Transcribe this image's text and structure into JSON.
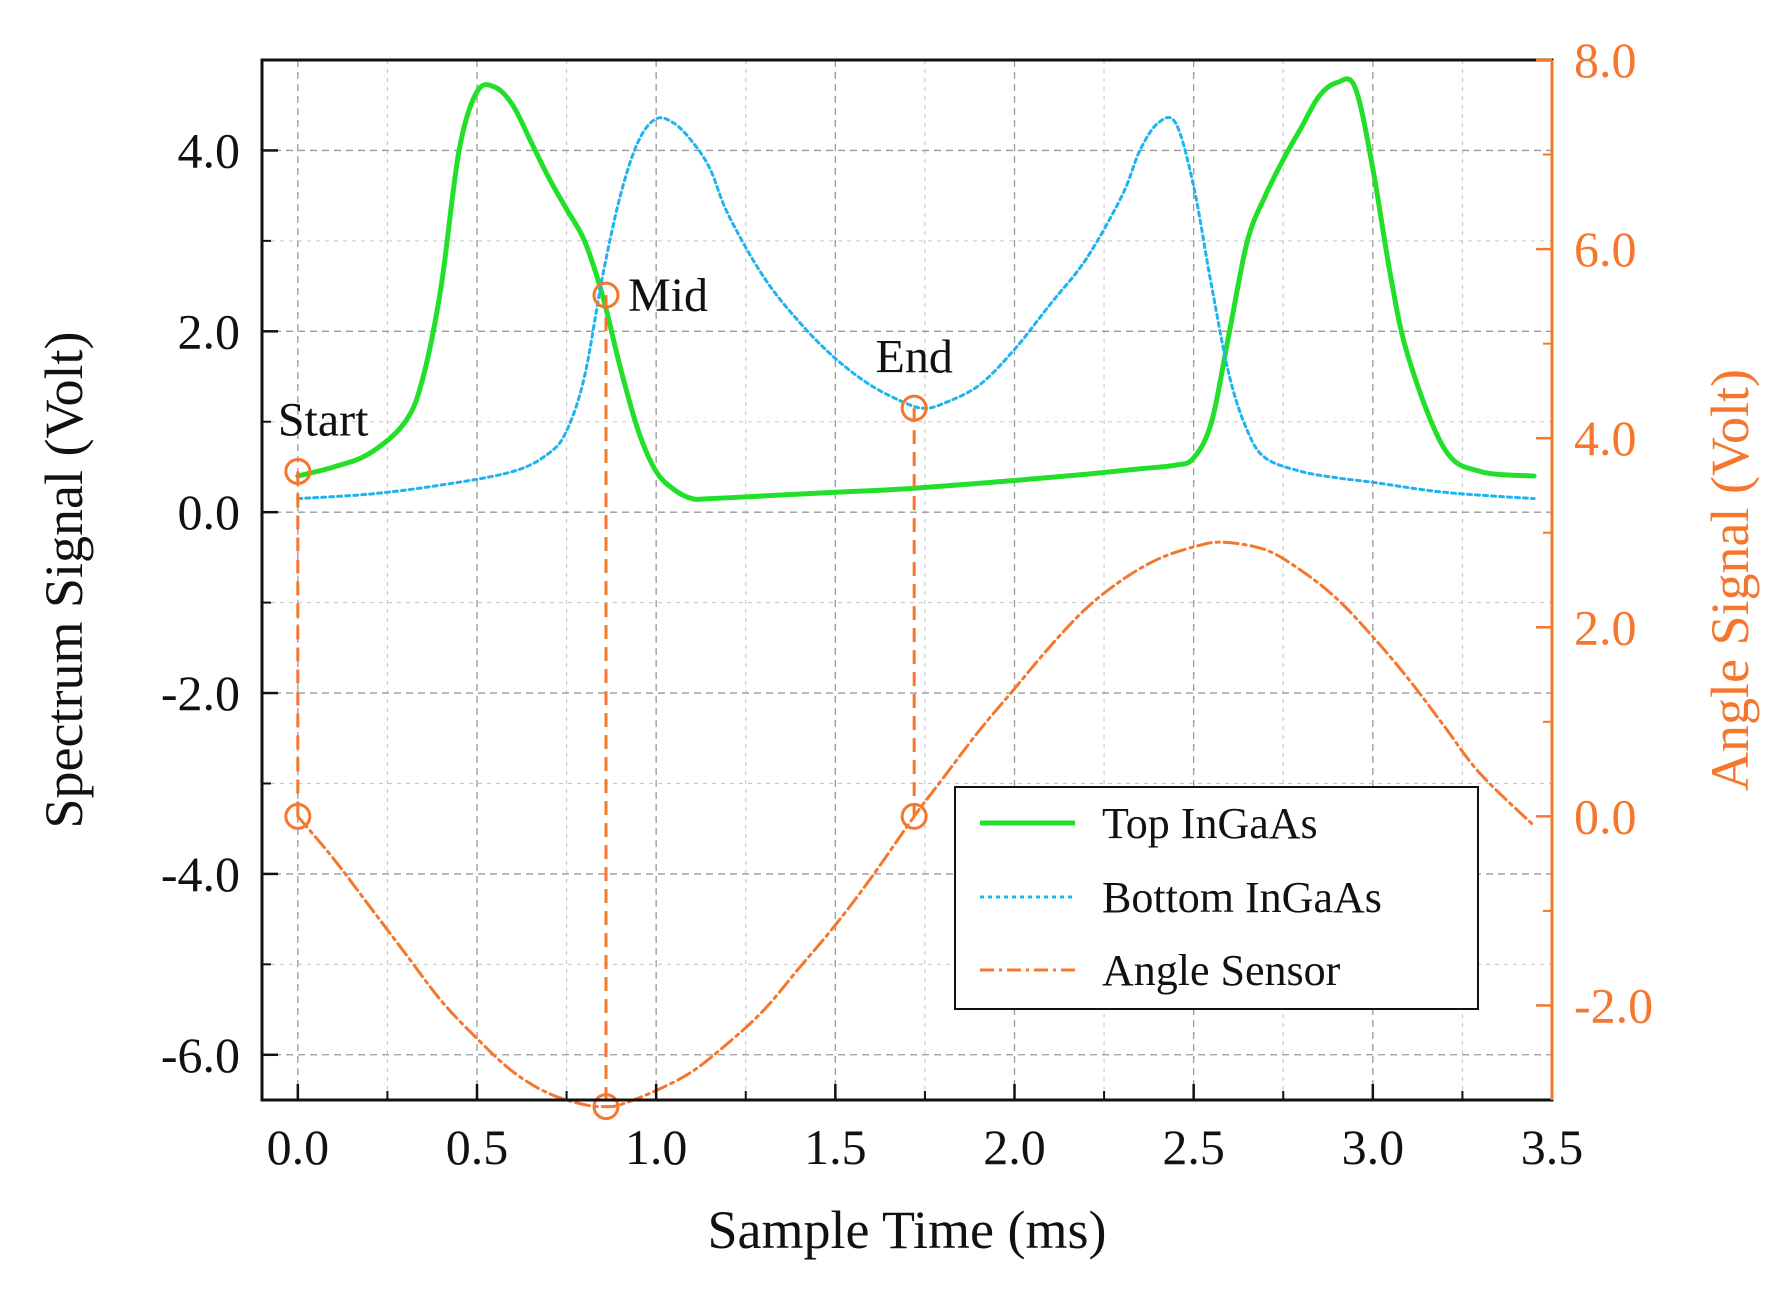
{
  "chart_data": {
    "type": "line",
    "xlabel": "Sample Time (ms)",
    "ylabel_left": "Spectrum Signal (Volt)",
    "ylabel_right": "Angle Signal (Volt)",
    "xlim": [
      -0.1,
      3.5
    ],
    "ylim_left": [
      -6.5,
      5.0
    ],
    "ylim_right": [
      -3.0,
      8.0
    ],
    "x_ticks": [
      "0.0",
      "0.5",
      "1.0",
      "1.5",
      "2.0",
      "2.5",
      "3.0",
      "3.5"
    ],
    "y_ticks_left": [
      "-6.0",
      "-4.0",
      "-2.0",
      "0.0",
      "2.0",
      "4.0"
    ],
    "y_ticks_right": [
      "-2.0",
      "0.0",
      "2.0",
      "4.0",
      "6.0",
      "8.0"
    ],
    "grid": true,
    "legend_position": "bottom-right",
    "colors": {
      "top": "#22e02a",
      "bottom": "#1fb4ee",
      "angle": "#f5772d",
      "axis_right": "#f5772d",
      "axis_left": "#111111"
    },
    "series": [
      {
        "name": "Top InGaAs",
        "axis": "left",
        "style": "solid",
        "x": [
          0.0,
          0.1,
          0.2,
          0.3,
          0.35,
          0.4,
          0.45,
          0.5,
          0.55,
          0.6,
          0.65,
          0.7,
          0.75,
          0.8,
          0.85,
          0.9,
          0.95,
          1.0,
          1.05,
          1.1,
          1.15,
          1.3,
          1.5,
          1.7,
          2.0,
          2.2,
          2.35,
          2.45,
          2.5,
          2.55,
          2.6,
          2.65,
          2.7,
          2.75,
          2.8,
          2.85,
          2.9,
          2.95,
          3.0,
          3.05,
          3.1,
          3.2,
          3.3,
          3.45
        ],
        "y": [
          0.4,
          0.5,
          0.65,
          1.0,
          1.5,
          2.5,
          4.0,
          4.65,
          4.7,
          4.5,
          4.1,
          3.7,
          3.35,
          3.0,
          2.4,
          1.6,
          0.9,
          0.45,
          0.25,
          0.15,
          0.15,
          0.18,
          0.22,
          0.26,
          0.35,
          0.42,
          0.48,
          0.52,
          0.6,
          1.0,
          2.0,
          3.0,
          3.5,
          3.9,
          4.25,
          4.6,
          4.75,
          4.7,
          3.8,
          2.6,
          1.7,
          0.7,
          0.45,
          0.4
        ]
      },
      {
        "name": "Bottom InGaAs",
        "axis": "left",
        "style": "dotted",
        "x": [
          0.0,
          0.2,
          0.4,
          0.6,
          0.7,
          0.75,
          0.8,
          0.85,
          0.9,
          0.95,
          1.0,
          1.05,
          1.1,
          1.15,
          1.2,
          1.3,
          1.4,
          1.5,
          1.6,
          1.7,
          1.75,
          1.8,
          1.9,
          2.0,
          2.1,
          2.2,
          2.3,
          2.35,
          2.4,
          2.45,
          2.5,
          2.55,
          2.6,
          2.65,
          2.7,
          2.8,
          2.9,
          3.0,
          3.2,
          3.45
        ],
        "y": [
          0.15,
          0.2,
          0.3,
          0.45,
          0.65,
          0.9,
          1.5,
          2.6,
          3.5,
          4.1,
          4.35,
          4.3,
          4.1,
          3.8,
          3.3,
          2.6,
          2.1,
          1.7,
          1.4,
          1.2,
          1.15,
          1.2,
          1.4,
          1.8,
          2.3,
          2.8,
          3.5,
          4.0,
          4.3,
          4.3,
          3.6,
          2.5,
          1.5,
          0.9,
          0.6,
          0.45,
          0.38,
          0.33,
          0.22,
          0.15
        ]
      },
      {
        "name": "Angle Sensor",
        "axis": "right",
        "style": "dash-dot",
        "x": [
          0.0,
          0.1,
          0.2,
          0.3,
          0.4,
          0.5,
          0.6,
          0.7,
          0.8,
          0.86,
          0.9,
          1.0,
          1.1,
          1.2,
          1.3,
          1.4,
          1.5,
          1.6,
          1.72,
          1.8,
          1.9,
          2.0,
          2.1,
          2.2,
          2.3,
          2.4,
          2.5,
          2.58,
          2.7,
          2.8,
          2.9,
          3.0,
          3.1,
          3.2,
          3.3,
          3.45
        ],
        "y": [
          0.0,
          -0.45,
          -0.95,
          -1.45,
          -1.95,
          -2.35,
          -2.7,
          -2.93,
          -3.05,
          -3.07,
          -3.05,
          -2.9,
          -2.7,
          -2.4,
          -2.05,
          -1.6,
          -1.15,
          -0.65,
          0.0,
          0.4,
          0.9,
          1.35,
          1.8,
          2.2,
          2.5,
          2.72,
          2.85,
          2.9,
          2.82,
          2.6,
          2.3,
          1.9,
          1.45,
          0.95,
          0.45,
          -0.1
        ]
      }
    ],
    "markers": [
      {
        "x": 0.0,
        "y": 0.45,
        "axis": "left"
      },
      {
        "x": 0.86,
        "y": 2.4,
        "axis": "left"
      },
      {
        "x": 1.72,
        "y": 1.15,
        "axis": "left"
      },
      {
        "x": 0.0,
        "y": 0.0,
        "axis": "right"
      },
      {
        "x": 0.86,
        "y": -3.07,
        "axis": "right"
      },
      {
        "x": 1.72,
        "y": 0.0,
        "axis": "right"
      }
    ],
    "guides": [
      {
        "x": 0.0,
        "from_left_y": 0.45,
        "to_right_y": 0.0
      },
      {
        "x": 0.86,
        "from_left_y": 2.4,
        "to_right_y": -3.07
      },
      {
        "x": 1.72,
        "from_left_y": 1.15,
        "to_right_y": 0.0
      }
    ],
    "annotations": [
      {
        "text": "Start",
        "x": 0.0,
        "y": 1.0,
        "axis": "left"
      },
      {
        "text": "Mid",
        "x": 0.86,
        "y": 2.4,
        "axis": "left"
      },
      {
        "text": "End",
        "x": 1.72,
        "y": 1.7,
        "axis": "left"
      }
    ],
    "legend": [
      "Top InGaAs",
      "Bottom InGaAs",
      "Angle Sensor"
    ]
  }
}
